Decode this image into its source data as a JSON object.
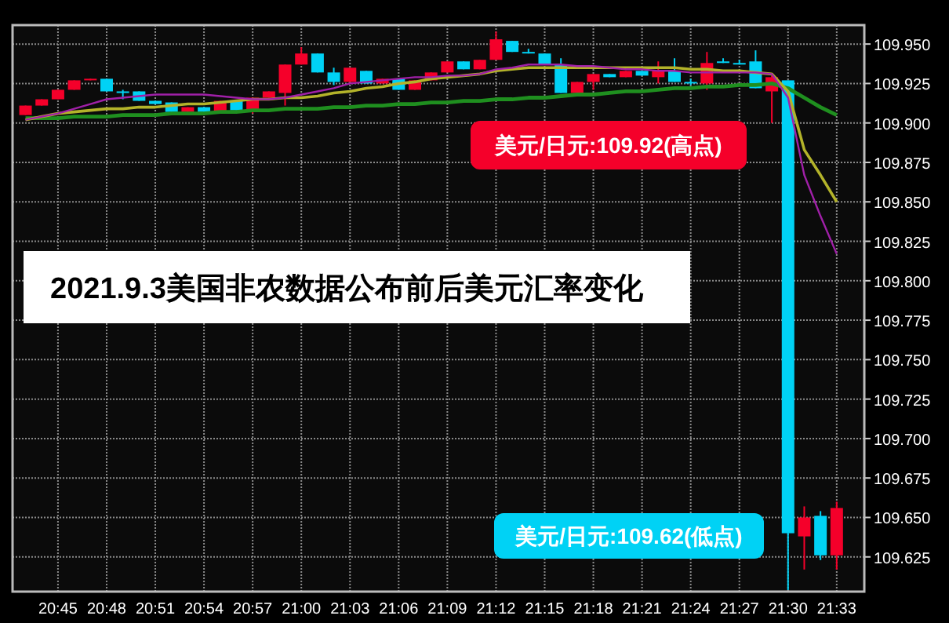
{
  "chart_data": {
    "type": "candlestick",
    "title": "2021.9.3美国非农数据公布前后美元汇率变化",
    "annotations": [
      "美元/日元:109.92(高点)",
      "美元/日元:109.62(低点)"
    ],
    "categories": [
      null,
      null,
      "20:45",
      null,
      null,
      "20:48",
      null,
      null,
      "20:51",
      null,
      null,
      "20:54",
      null,
      null,
      "20:57",
      null,
      null,
      "21:00",
      null,
      null,
      "21:03",
      null,
      null,
      "21:06",
      null,
      null,
      "21:09",
      null,
      null,
      "21:12",
      null,
      null,
      "21:15",
      null,
      null,
      "21:18",
      null,
      null,
      "21:21",
      null,
      null,
      "21:24",
      null,
      null,
      "21:27",
      null,
      null,
      "21:30",
      null,
      null,
      "21:33"
    ],
    "ohlc": [
      [
        109.905,
        109.911,
        109.905,
        109.911
      ],
      [
        109.911,
        109.915,
        109.911,
        109.915
      ],
      [
        109.915,
        109.921,
        109.915,
        109.921
      ],
      [
        109.921,
        109.927,
        109.921,
        109.927
      ],
      [
        109.927,
        109.928,
        109.927,
        109.928
      ],
      [
        109.928,
        109.928,
        109.92,
        109.92
      ],
      [
        109.92,
        109.921,
        109.915,
        109.919
      ],
      [
        109.92,
        109.92,
        109.914,
        109.914
      ],
      [
        109.914,
        109.914,
        109.912,
        109.912
      ],
      [
        109.913,
        109.913,
        109.907,
        109.907
      ],
      [
        109.907,
        109.91,
        109.907,
        109.91
      ],
      [
        109.91,
        109.91,
        109.907,
        109.907
      ],
      [
        109.907,
        109.914,
        109.907,
        109.914
      ],
      [
        109.914,
        109.914,
        109.908,
        109.908
      ],
      [
        109.908,
        109.916,
        109.906,
        109.916
      ],
      [
        109.916,
        109.92,
        109.916,
        109.92
      ],
      [
        109.919,
        109.937,
        109.911,
        109.937
      ],
      [
        109.937,
        109.948,
        109.937,
        109.944
      ],
      [
        109.944,
        109.944,
        109.932,
        109.932
      ],
      [
        109.932,
        109.935,
        109.924,
        109.926
      ],
      [
        109.926,
        109.935,
        109.926,
        109.935
      ],
      [
        109.933,
        109.933,
        109.925,
        109.925
      ],
      [
        109.925,
        109.928,
        109.925,
        109.928
      ],
      [
        109.928,
        109.928,
        109.921,
        109.921
      ],
      [
        109.921,
        109.927,
        109.921,
        109.927
      ],
      [
        109.927,
        109.932,
        109.927,
        109.932
      ],
      [
        109.932,
        109.939,
        109.932,
        109.939
      ],
      [
        109.939,
        109.939,
        109.934,
        109.934
      ],
      [
        109.934,
        109.94,
        109.934,
        109.94
      ],
      [
        109.94,
        109.958,
        109.94,
        109.953
      ],
      [
        109.952,
        109.952,
        109.945,
        109.945
      ],
      [
        109.945,
        109.947,
        109.944,
        109.945
      ],
      [
        109.944,
        109.944,
        109.937,
        109.937
      ],
      [
        109.937,
        109.941,
        109.919,
        109.919
      ],
      [
        109.919,
        109.926,
        109.919,
        109.926
      ],
      [
        109.926,
        109.931,
        109.921,
        109.931
      ],
      [
        109.931,
        109.931,
        109.929,
        109.929
      ],
      [
        109.929,
        109.933,
        109.929,
        109.933
      ],
      [
        109.933,
        109.933,
        109.93,
        109.93
      ],
      [
        109.929,
        109.939,
        109.925,
        109.933
      ],
      [
        109.933,
        109.941,
        109.926,
        109.926
      ],
      [
        109.926,
        109.928,
        109.924,
        109.926
      ],
      [
        109.925,
        109.945,
        109.921,
        109.938
      ],
      [
        109.939,
        109.941,
        109.938,
        109.939
      ],
      [
        109.938,
        109.94,
        109.937,
        109.938
      ],
      [
        109.939,
        109.946,
        109.922,
        109.922
      ],
      [
        109.92,
        109.93,
        109.9,
        109.929
      ],
      [
        109.927,
        109.927,
        109.604,
        109.64
      ],
      [
        109.638,
        109.657,
        109.617,
        109.65
      ],
      [
        109.651,
        109.654,
        109.623,
        109.626
      ],
      [
        109.626,
        109.66,
        109.617,
        109.656
      ]
    ],
    "colors": [
      "#f5002a",
      "#f5002a",
      "#f5002a",
      "#f5002a",
      "#f5002a",
      "#00d2f5",
      "#00d2f5",
      "#00d2f5",
      "#00d2f5",
      "#00d2f5",
      "#f5002a",
      "#00d2f5",
      "#f5002a",
      "#00d2f5",
      "#f5002a",
      "#f5002a",
      "#f5002a",
      "#f5002a",
      "#00d2f5",
      "#00d2f5",
      "#f5002a",
      "#00d2f5",
      "#f5002a",
      "#00d2f5",
      "#f5002a",
      "#f5002a",
      "#f5002a",
      "#00d2f5",
      "#f5002a",
      "#f5002a",
      "#00d2f5",
      "#00d2f5",
      "#00d2f5",
      "#00d2f5",
      "#f5002a",
      "#f5002a",
      "#00d2f5",
      "#f5002a",
      "#00d2f5",
      "#f5002a",
      "#00d2f5",
      "#00d2f5",
      "#f5002a",
      "#00d2f5",
      "#00d2f5",
      "#00d2f5",
      "#f5002a",
      "#00d2f5",
      "#f5002a",
      "#00d2f5",
      "#f5002a"
    ],
    "series": [
      {
        "type": "line",
        "color": "#1f8f1f",
        "values": [
          109.903,
          109.903,
          109.903,
          109.904,
          109.904,
          109.904,
          109.905,
          109.905,
          109.905,
          109.906,
          109.906,
          109.906,
          109.907,
          109.907,
          109.908,
          109.908,
          109.909,
          109.909,
          109.909,
          109.91,
          109.91,
          109.911,
          109.911,
          109.912,
          109.912,
          109.913,
          109.913,
          109.914,
          109.914,
          109.915,
          109.915,
          109.916,
          109.916,
          109.917,
          109.918,
          109.918,
          109.919,
          109.92,
          109.92,
          109.921,
          109.922,
          109.922,
          109.923,
          109.923,
          109.924,
          109.924,
          109.925,
          109.922,
          109.916,
          109.91,
          109.905
        ]
      },
      {
        "type": "line",
        "color": "#b3b32a",
        "values": [
          109.902,
          109.904,
          109.906,
          109.907,
          109.908,
          109.909,
          109.909,
          109.91,
          109.91,
          109.911,
          109.912,
          109.912,
          109.913,
          109.914,
          109.915,
          109.915,
          109.916,
          109.916,
          109.917,
          109.919,
          109.92,
          109.922,
          109.923,
          109.925,
          109.926,
          109.928,
          109.929,
          109.93,
          109.931,
          109.933,
          109.934,
          109.935,
          109.935,
          109.935,
          109.935,
          109.935,
          109.935,
          109.935,
          109.935,
          109.935,
          109.935,
          109.934,
          109.934,
          109.933,
          109.933,
          109.932,
          109.931,
          109.92,
          109.883,
          109.867,
          109.85
        ]
      },
      {
        "type": "line",
        "color": "#a020a8",
        "values": [
          109.902,
          109.904,
          109.906,
          109.909,
          109.912,
          109.915,
          109.916,
          109.917,
          109.918,
          109.918,
          109.918,
          109.918,
          109.917,
          109.916,
          109.915,
          109.915,
          109.916,
          109.918,
          109.92,
          109.922,
          109.925,
          109.926,
          109.927,
          109.928,
          109.929,
          109.929,
          109.93,
          109.93,
          109.931,
          109.934,
          109.935,
          109.937,
          109.937,
          109.937,
          109.936,
          109.936,
          109.935,
          109.934,
          109.934,
          109.933,
          109.933,
          109.932,
          109.932,
          109.932,
          109.932,
          109.932,
          109.931,
          109.916,
          109.867,
          109.841,
          109.817
        ]
      }
    ],
    "ylim": [
      109.603,
      109.962
    ],
    "yticks": [
      {
        "value": 109.95,
        "label": "109.950"
      },
      109.925,
      {
        "value": 109.9,
        "label": "109.900"
      },
      109.875,
      {
        "value": 109.85,
        "label": "109.850"
      },
      109.825,
      {
        "value": 109.8,
        "label": "109.800"
      },
      109.775,
      {
        "value": 109.75,
        "label": "109.750"
      },
      109.725,
      {
        "value": 109.7,
        "label": "109.700"
      },
      109.675,
      {
        "value": 109.65,
        "label": "109.650"
      },
      109.625
    ],
    "grid": true,
    "line_style": "solid"
  }
}
